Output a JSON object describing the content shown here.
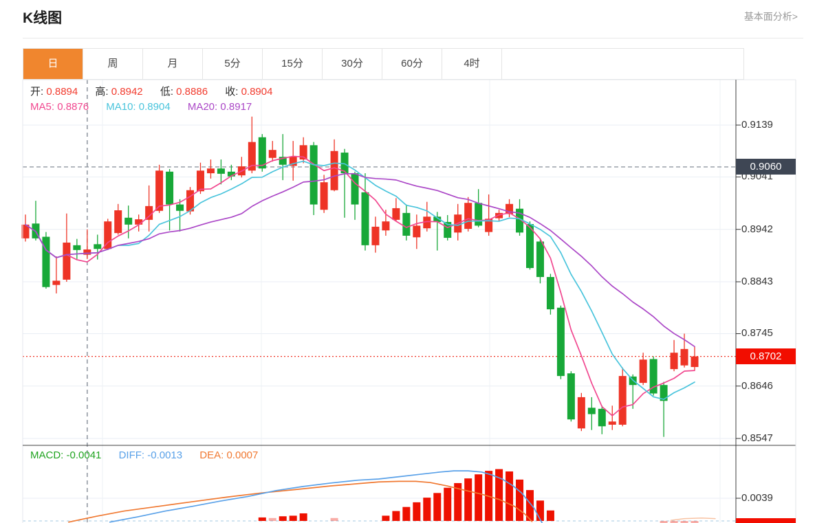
{
  "header": {
    "title": "K线图",
    "link": "基本面分析>"
  },
  "tabs": {
    "items": [
      "日",
      "周",
      "月",
      "5分",
      "15分",
      "30分",
      "60分",
      "4时"
    ],
    "active_index": 0
  },
  "colors": {
    "accent_orange": "#f0862e",
    "candle_up": "#ee3426",
    "candle_down": "#18a838",
    "ma5": "#f1478f",
    "ma10": "#49c4dc",
    "ma20": "#ab47c7",
    "macd_text": "#1fa31f",
    "diff_line": "#58a0e8",
    "dea_line": "#f07830",
    "hist_bar": "#ee1100",
    "ref_badge_bg": "#3e4654",
    "price_badge_bg": "#f20d00",
    "price_line": "#f03022",
    "legend_value_red": "#f23b2e"
  },
  "chart_data": {
    "type": "candlestick",
    "title": "K线图",
    "periods": [
      "日",
      "周",
      "月",
      "5分",
      "15分",
      "30分",
      "60分",
      "4时"
    ],
    "ohlc_legend": {
      "open_label": "开:",
      "open": "0.8894",
      "high_label": "高:",
      "high": "0.8942",
      "low_label": "低:",
      "low": "0.8886",
      "close_label": "收:",
      "close": "0.8904"
    },
    "ma_legend": [
      {
        "label": "MA5:",
        "value": "0.8876"
      },
      {
        "label": "MA10:",
        "value": "0.8904"
      },
      {
        "label": "MA20:",
        "value": "0.8917"
      }
    ],
    "crosshair_index": 6,
    "y_axis": {
      "ticks": [
        "0.9139",
        "0.9041",
        "0.8942",
        "0.8843",
        "0.8745",
        "0.8646",
        "0.8547"
      ],
      "ref_line_label": "0.9060",
      "last_price_label": "0.8702"
    },
    "ma_periods": [
      5,
      10,
      20
    ],
    "candles": [
      [
        0.8925,
        0.897,
        0.8919,
        0.8951
      ],
      [
        0.8953,
        0.8996,
        0.8921,
        0.8925
      ],
      [
        0.8928,
        0.8937,
        0.883,
        0.8833
      ],
      [
        0.8837,
        0.8891,
        0.8821,
        0.8845
      ],
      [
        0.8847,
        0.8972,
        0.8843,
        0.8917
      ],
      [
        0.8912,
        0.8924,
        0.8886,
        0.8903
      ],
      [
        0.8894,
        0.8942,
        0.8886,
        0.8904
      ],
      [
        0.8914,
        0.8932,
        0.8885,
        0.8905
      ],
      [
        0.8905,
        0.8962,
        0.8903,
        0.8957
      ],
      [
        0.8935,
        0.899,
        0.8932,
        0.8978
      ],
      [
        0.8964,
        0.8987,
        0.8925,
        0.8951
      ],
      [
        0.8951,
        0.897,
        0.8938,
        0.8961
      ],
      [
        0.896,
        0.9025,
        0.8938,
        0.8986
      ],
      [
        0.8977,
        0.9064,
        0.8973,
        0.9053
      ],
      [
        0.9051,
        0.9056,
        0.894,
        0.8989
      ],
      [
        0.8989,
        0.8999,
        0.8938,
        0.8977
      ],
      [
        0.8976,
        0.9022,
        0.897,
        0.9016
      ],
      [
        0.9014,
        0.9068,
        0.9009,
        0.9053
      ],
      [
        0.9048,
        0.9074,
        0.9038,
        0.9057
      ],
      [
        0.9057,
        0.9074,
        0.9027,
        0.9047
      ],
      [
        0.9051,
        0.9064,
        0.9035,
        0.9042
      ],
      [
        0.9044,
        0.9079,
        0.904,
        0.9061
      ],
      [
        0.9053,
        0.9155,
        0.9048,
        0.9107
      ],
      [
        0.9116,
        0.9122,
        0.9051,
        0.9057
      ],
      [
        0.9077,
        0.9109,
        0.907,
        0.9092
      ],
      [
        0.9079,
        0.9122,
        0.9035,
        0.9064
      ],
      [
        0.9062,
        0.9109,
        0.9034,
        0.908
      ],
      [
        0.9074,
        0.9116,
        0.9067,
        0.9101
      ],
      [
        0.9101,
        0.9107,
        0.8969,
        0.8989
      ],
      [
        0.8979,
        0.9045,
        0.8973,
        0.9031
      ],
      [
        0.9016,
        0.9112,
        0.9014,
        0.909
      ],
      [
        0.9087,
        0.9094,
        0.8964,
        0.9048
      ],
      [
        0.9048,
        0.9051,
        0.896,
        0.8989
      ],
      [
        0.9012,
        0.9048,
        0.8902,
        0.8912
      ],
      [
        0.8912,
        0.8966,
        0.8898,
        0.8947
      ],
      [
        0.894,
        0.8979,
        0.893,
        0.8957
      ],
      [
        0.896,
        0.9001,
        0.8957,
        0.8982
      ],
      [
        0.8973,
        0.8989,
        0.8921,
        0.893
      ],
      [
        0.8927,
        0.897,
        0.8905,
        0.8949
      ],
      [
        0.8944,
        0.8994,
        0.8938,
        0.8966
      ],
      [
        0.8966,
        0.8975,
        0.8902,
        0.8956
      ],
      [
        0.8956,
        0.8969,
        0.8921,
        0.8926
      ],
      [
        0.8936,
        0.899,
        0.8921,
        0.897
      ],
      [
        0.8943,
        0.9003,
        0.8938,
        0.8992
      ],
      [
        0.8992,
        0.9018,
        0.8946,
        0.8949
      ],
      [
        0.8937,
        0.9008,
        0.893,
        0.8962
      ],
      [
        0.8963,
        0.8979,
        0.8957,
        0.8973
      ],
      [
        0.8971,
        0.8999,
        0.8965,
        0.899
      ],
      [
        0.8981,
        0.8999,
        0.893,
        0.8936
      ],
      [
        0.8952,
        0.8957,
        0.8866,
        0.8869
      ],
      [
        0.8919,
        0.8924,
        0.884,
        0.8852
      ],
      [
        0.8852,
        0.8858,
        0.8781,
        0.8791
      ],
      [
        0.8794,
        0.8798,
        0.8659,
        0.8665
      ],
      [
        0.867,
        0.8674,
        0.8579,
        0.8583
      ],
      [
        0.8566,
        0.8633,
        0.8561,
        0.8625
      ],
      [
        0.8605,
        0.8625,
        0.8563,
        0.8593
      ],
      [
        0.8603,
        0.8609,
        0.8555,
        0.857
      ],
      [
        0.8573,
        0.8609,
        0.8563,
        0.8579
      ],
      [
        0.8573,
        0.8681,
        0.857,
        0.8665
      ],
      [
        0.8664,
        0.8668,
        0.8603,
        0.8648
      ],
      [
        0.8652,
        0.8709,
        0.8648,
        0.8696
      ],
      [
        0.8697,
        0.8702,
        0.8628,
        0.8632
      ],
      [
        0.8648,
        0.8654,
        0.855,
        0.8618
      ],
      [
        0.8678,
        0.8733,
        0.8674,
        0.8709
      ],
      [
        0.8685,
        0.8745,
        0.8681,
        0.8716
      ],
      [
        0.8682,
        0.872,
        0.8676,
        0.8702
      ]
    ],
    "macd": {
      "legend": [
        {
          "label": "MACD:",
          "value": "-0.0041"
        },
        {
          "label": "DIFF:",
          "value": "-0.0013"
        },
        {
          "label": "DEA:",
          "value": "0.0007"
        }
      ],
      "axis_tick": "0.0039",
      "bars": [
        [
          23,
          0.0006,
          0
        ],
        [
          24,
          0.0005,
          1
        ],
        [
          25,
          0.0008,
          0
        ],
        [
          26,
          0.0009,
          0
        ],
        [
          27,
          0.0013,
          0
        ],
        [
          30,
          0.0005,
          1
        ],
        [
          35,
          0.0009,
          0
        ],
        [
          36,
          0.0017,
          0
        ],
        [
          37,
          0.0024,
          0
        ],
        [
          38,
          0.0032,
          0
        ],
        [
          39,
          0.004,
          0
        ],
        [
          40,
          0.0048,
          0
        ],
        [
          41,
          0.0057,
          0
        ],
        [
          42,
          0.0065,
          0
        ],
        [
          43,
          0.0073,
          0
        ],
        [
          44,
          0.008,
          0
        ],
        [
          45,
          0.0086,
          0
        ],
        [
          46,
          0.0089,
          0
        ],
        [
          47,
          0.0085,
          0
        ],
        [
          48,
          0.0071,
          0
        ],
        [
          49,
          0.0053,
          0
        ],
        [
          50,
          0.0035,
          0
        ],
        [
          51,
          0.0018,
          0
        ],
        [
          62,
          -0.0005,
          1
        ],
        [
          63,
          -0.0005,
          1
        ],
        [
          64,
          -0.0004,
          1
        ],
        [
          65,
          -0.0004,
          1
        ]
      ],
      "diff_line": [
        [
          8.2,
          -0.0002
        ],
        [
          10.9,
          0.0007
        ],
        [
          13.6,
          0.0017
        ],
        [
          16.2,
          0.0025
        ],
        [
          18.9,
          0.0034
        ],
        [
          21.6,
          0.0042
        ],
        [
          24.3,
          0.0052
        ],
        [
          26.9,
          0.0059
        ],
        [
          29.6,
          0.0065
        ],
        [
          32.3,
          0.007
        ],
        [
          34.3,
          0.0072
        ],
        [
          36.3,
          0.0076
        ],
        [
          38.3,
          0.008
        ],
        [
          40.3,
          0.0084
        ],
        [
          41.6,
          0.0086
        ],
        [
          43.0,
          0.0086
        ],
        [
          44.3,
          0.0084
        ],
        [
          45.3,
          0.0079
        ],
        [
          46.3,
          0.0072
        ],
        [
          47.3,
          0.0061
        ],
        [
          48.2,
          0.0048
        ],
        [
          48.8,
          0.0035
        ],
        [
          49.4,
          0.0022
        ],
        [
          49.8,
          0.0009
        ],
        [
          50.2,
          -0.0004
        ]
      ],
      "dea_line": [
        [
          4.2,
          -0.0002
        ],
        [
          6.9,
          0.0008
        ],
        [
          9.6,
          0.0017
        ],
        [
          12.9,
          0.0025
        ],
        [
          16.2,
          0.0033
        ],
        [
          19.6,
          0.0041
        ],
        [
          22.9,
          0.0048
        ],
        [
          26.3,
          0.0054
        ],
        [
          29.6,
          0.006
        ],
        [
          32.3,
          0.0064
        ],
        [
          34.3,
          0.0067
        ],
        [
          36.3,
          0.0068
        ],
        [
          37.9,
          0.0068
        ],
        [
          39.3,
          0.0066
        ],
        [
          41.0,
          0.006
        ],
        [
          42.6,
          0.0053
        ],
        [
          44.3,
          0.0046
        ],
        [
          46.0,
          0.0037
        ],
        [
          47.5,
          0.0025
        ],
        [
          48.5,
          0.0012
        ],
        [
          49.2,
          -0.0001
        ]
      ],
      "dea_tail": [
        [
          62.7,
          0.0001
        ],
        [
          64.0,
          0.0004
        ],
        [
          65.7,
          0.0005
        ],
        [
          67.0,
          0.0004
        ]
      ]
    }
  }
}
